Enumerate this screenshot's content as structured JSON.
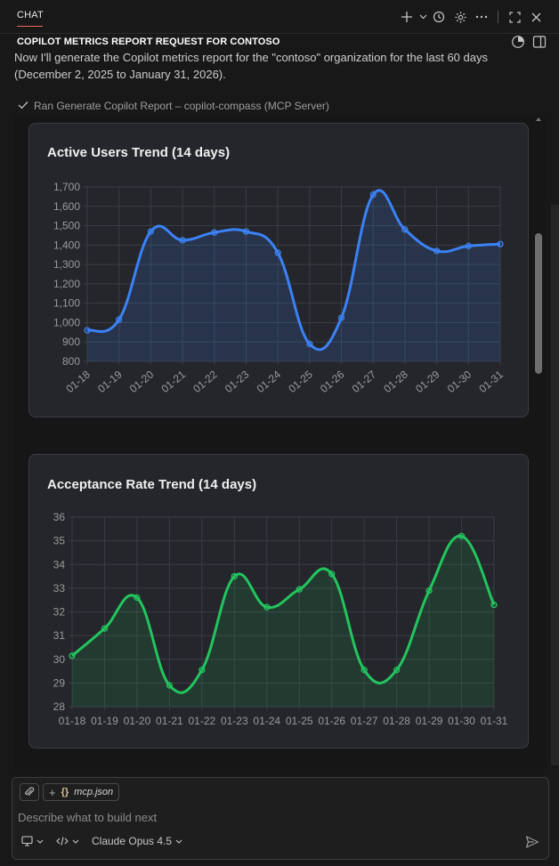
{
  "header": {
    "tab_label": "CHAT",
    "icons": [
      "plus-icon",
      "chevron-down-icon",
      "history-icon",
      "gear-icon",
      "more-icon",
      "maximize-icon",
      "close-icon"
    ]
  },
  "session": {
    "title": "COPILOT METRICS REPORT REQUEST FOR CONTOSO"
  },
  "message": {
    "line1": "Now I'll generate the Copilot metrics report for the \"contoso\" organization for the last 60 days",
    "line2": "(December 2, 2025 to January 31, 2026)."
  },
  "tool_call": {
    "text": "Ran Generate Copilot Report – copilot-compass (MCP Server)"
  },
  "chart_data": [
    {
      "type": "line",
      "title": "Active Users Trend (14 days)",
      "categories": [
        "01-18",
        "01-19",
        "01-20",
        "01-21",
        "01-22",
        "01-23",
        "01-24",
        "01-25",
        "01-26",
        "01-27",
        "01-28",
        "01-29",
        "01-30",
        "01-31"
      ],
      "values": [
        960,
        1015,
        1470,
        1425,
        1465,
        1470,
        1360,
        890,
        1025,
        1660,
        1480,
        1370,
        1395,
        1405
      ],
      "yticks": [
        "800",
        "900",
        "1,000",
        "1,100",
        "1,200",
        "1,300",
        "1,400",
        "1,500",
        "1,600",
        "1,700"
      ],
      "ylim": [
        800,
        1700
      ],
      "color": "#3b82f6",
      "grid": true
    },
    {
      "type": "line",
      "title": "Acceptance Rate Trend (14 days)",
      "categories": [
        "01-18",
        "01-19",
        "01-20",
        "01-21",
        "01-22",
        "01-23",
        "01-24",
        "01-25",
        "01-26",
        "01-27",
        "01-28",
        "01-29",
        "01-30",
        "01-31"
      ],
      "values": [
        30.15,
        31.3,
        32.6,
        28.9,
        29.55,
        33.5,
        32.2,
        32.95,
        33.6,
        29.55,
        29.55,
        32.9,
        35.2,
        32.3
      ],
      "yticks": [
        "28",
        "29",
        "30",
        "31",
        "32",
        "33",
        "34",
        "35",
        "36"
      ],
      "ylim": [
        28,
        36
      ],
      "color": "#22c55e",
      "grid": true
    }
  ],
  "composer": {
    "context_file": "mcp.json",
    "placeholder": "Describe what to build next",
    "model": "Claude Opus 4.5"
  }
}
